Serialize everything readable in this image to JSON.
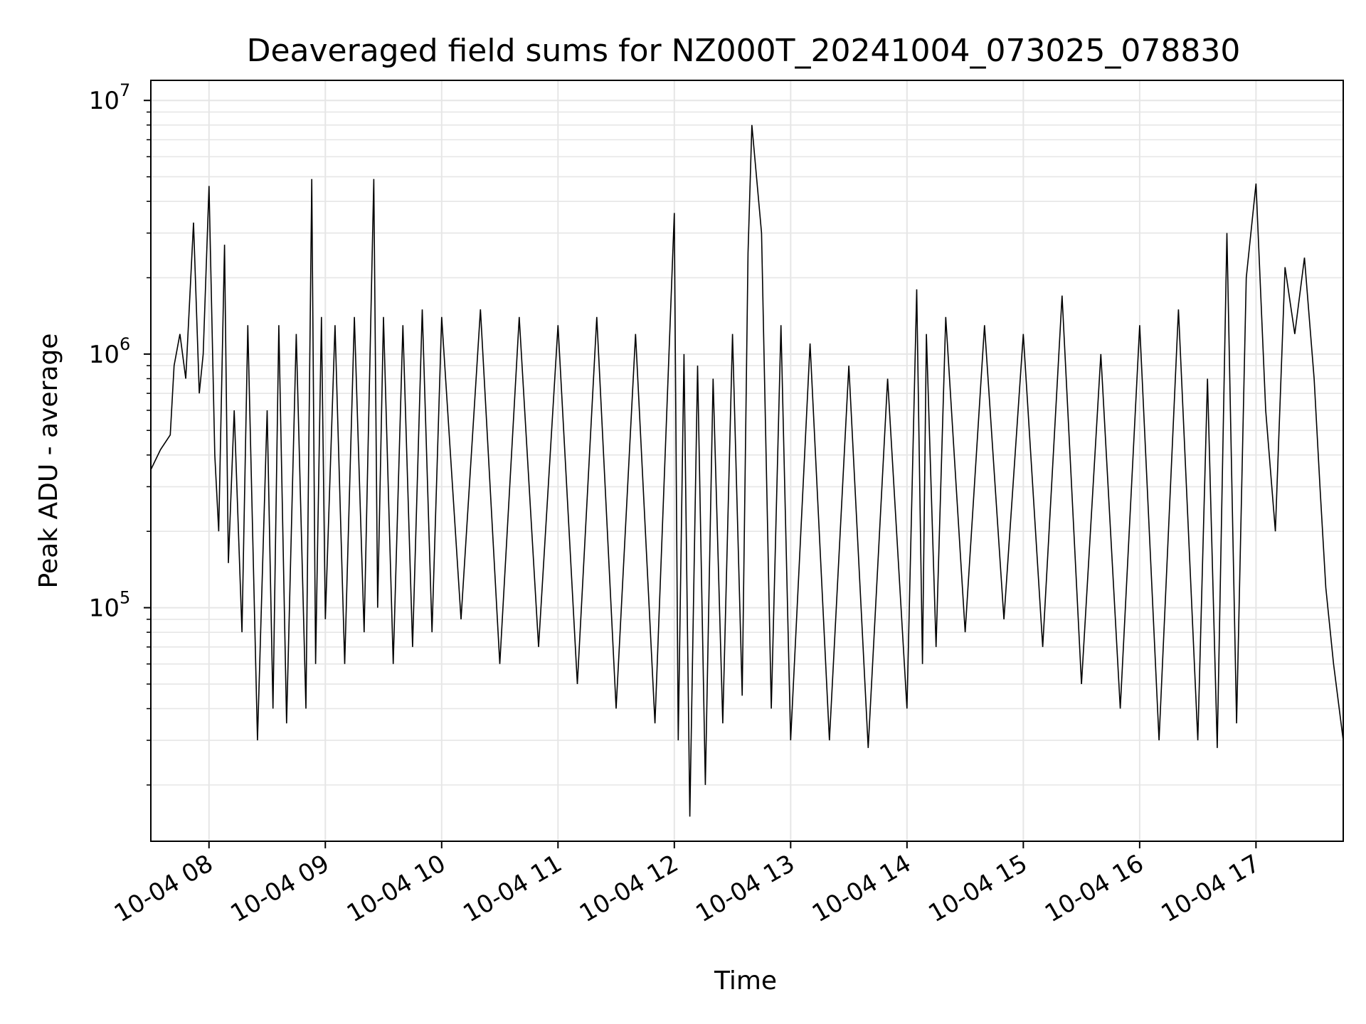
{
  "chart_data": {
    "type": "line",
    "title": "Deaveraged field sums for NZ000T_20241004_073025_078830",
    "xlabel": "Time",
    "ylabel": "Peak ADU - average",
    "yscale": "log",
    "ylim": [
      12000,
      12000000
    ],
    "xlim": [
      "2024-10-04 07:30",
      "2024-10-04 17:45"
    ],
    "grid": true,
    "line_color": "#000000",
    "grid_color": "#e6e6e6",
    "x_ticks": [
      {
        "label": "10-04 08",
        "t": "2024-10-04 08:00"
      },
      {
        "label": "10-04 09",
        "t": "2024-10-04 09:00"
      },
      {
        "label": "10-04 10",
        "t": "2024-10-04 10:00"
      },
      {
        "label": "10-04 11",
        "t": "2024-10-04 11:00"
      },
      {
        "label": "10-04 12",
        "t": "2024-10-04 12:00"
      },
      {
        "label": "10-04 13",
        "t": "2024-10-04 13:00"
      },
      {
        "label": "10-04 14",
        "t": "2024-10-04 14:00"
      },
      {
        "label": "10-04 15",
        "t": "2024-10-04 15:00"
      },
      {
        "label": "10-04 16",
        "t": "2024-10-04 16:00"
      },
      {
        "label": "10-04 17",
        "t": "2024-10-04 17:00"
      }
    ],
    "y_ticks": [
      {
        "value": 100000,
        "base": "10",
        "exp": "5"
      },
      {
        "value": 1000000,
        "base": "10",
        "exp": "6"
      },
      {
        "value": 10000000,
        "base": "10",
        "exp": "7"
      }
    ],
    "series": [
      {
        "x": [
          "2024-10-04 07:30",
          "2024-10-04 07:35",
          "2024-10-04 07:40",
          "2024-10-04 07:42",
          "2024-10-04 07:45",
          "2024-10-04 07:48",
          "2024-10-04 07:52",
          "2024-10-04 07:55",
          "2024-10-04 07:57",
          "2024-10-04 08:00",
          "2024-10-04 08:03",
          "2024-10-04 08:05",
          "2024-10-04 08:08",
          "2024-10-04 08:10",
          "2024-10-04 08:13",
          "2024-10-04 08:17",
          "2024-10-04 08:20",
          "2024-10-04 08:25",
          "2024-10-04 08:30",
          "2024-10-04 08:33",
          "2024-10-04 08:36",
          "2024-10-04 08:40",
          "2024-10-04 08:45",
          "2024-10-04 08:50",
          "2024-10-04 08:53",
          "2024-10-04 08:55",
          "2024-10-04 08:58",
          "2024-10-04 09:00",
          "2024-10-04 09:05",
          "2024-10-04 09:10",
          "2024-10-04 09:15",
          "2024-10-04 09:20",
          "2024-10-04 09:25",
          "2024-10-04 09:27",
          "2024-10-04 09:30",
          "2024-10-04 09:35",
          "2024-10-04 09:40",
          "2024-10-04 09:45",
          "2024-10-04 09:50",
          "2024-10-04 09:55",
          "2024-10-04 10:00",
          "2024-10-04 10:10",
          "2024-10-04 10:20",
          "2024-10-04 10:30",
          "2024-10-04 10:40",
          "2024-10-04 10:50",
          "2024-10-04 11:00",
          "2024-10-04 11:10",
          "2024-10-04 11:20",
          "2024-10-04 11:30",
          "2024-10-04 11:40",
          "2024-10-04 11:50",
          "2024-10-04 12:00",
          "2024-10-04 12:02",
          "2024-10-04 12:05",
          "2024-10-04 12:08",
          "2024-10-04 12:12",
          "2024-10-04 12:16",
          "2024-10-04 12:20",
          "2024-10-04 12:25",
          "2024-10-04 12:30",
          "2024-10-04 12:35",
          "2024-10-04 12:38",
          "2024-10-04 12:40",
          "2024-10-04 12:45",
          "2024-10-04 12:50",
          "2024-10-04 12:55",
          "2024-10-04 13:00",
          "2024-10-04 13:10",
          "2024-10-04 13:20",
          "2024-10-04 13:30",
          "2024-10-04 13:40",
          "2024-10-04 13:50",
          "2024-10-04 14:00",
          "2024-10-04 14:05",
          "2024-10-04 14:08",
          "2024-10-04 14:10",
          "2024-10-04 14:15",
          "2024-10-04 14:20",
          "2024-10-04 14:30",
          "2024-10-04 14:40",
          "2024-10-04 14:50",
          "2024-10-04 15:00",
          "2024-10-04 15:10",
          "2024-10-04 15:20",
          "2024-10-04 15:30",
          "2024-10-04 15:40",
          "2024-10-04 15:50",
          "2024-10-04 16:00",
          "2024-10-04 16:10",
          "2024-10-04 16:20",
          "2024-10-04 16:30",
          "2024-10-04 16:35",
          "2024-10-04 16:40",
          "2024-10-04 16:45",
          "2024-10-04 16:50",
          "2024-10-04 16:55",
          "2024-10-04 17:00",
          "2024-10-04 17:05",
          "2024-10-04 17:10",
          "2024-10-04 17:15",
          "2024-10-04 17:20",
          "2024-10-04 17:25",
          "2024-10-04 17:30",
          "2024-10-04 17:33",
          "2024-10-04 17:36",
          "2024-10-04 17:40",
          "2024-10-04 17:45"
        ],
        "y": [
          350000,
          420000,
          480000,
          900000,
          1200000,
          800000,
          3300000,
          700000,
          1000000,
          4600000,
          400000,
          200000,
          2700000,
          150000,
          600000,
          80000,
          1300000,
          30000,
          600000,
          40000,
          1300000,
          35000,
          1200000,
          40000,
          4900000,
          60000,
          1400000,
          90000,
          1300000,
          60000,
          1400000,
          80000,
          4900000,
          100000,
          1400000,
          60000,
          1300000,
          70000,
          1500000,
          80000,
          1400000,
          90000,
          1500000,
          60000,
          1400000,
          70000,
          1300000,
          50000,
          1400000,
          40000,
          1200000,
          35000,
          3600000,
          30000,
          1000000,
          15000,
          900000,
          20000,
          800000,
          35000,
          1200000,
          45000,
          2500000,
          8000000,
          3000000,
          40000,
          1300000,
          30000,
          1100000,
          30000,
          900000,
          28000,
          800000,
          40000,
          1800000,
          60000,
          1200000,
          70000,
          1400000,
          80000,
          1300000,
          90000,
          1200000,
          70000,
          1700000,
          50000,
          1000000,
          40000,
          1300000,
          30000,
          1500000,
          30000,
          800000,
          28000,
          3000000,
          35000,
          2000000,
          4700000,
          600000,
          200000,
          2200000,
          1200000,
          2400000,
          800000,
          300000,
          120000,
          60000,
          30000
        ]
      }
    ]
  }
}
